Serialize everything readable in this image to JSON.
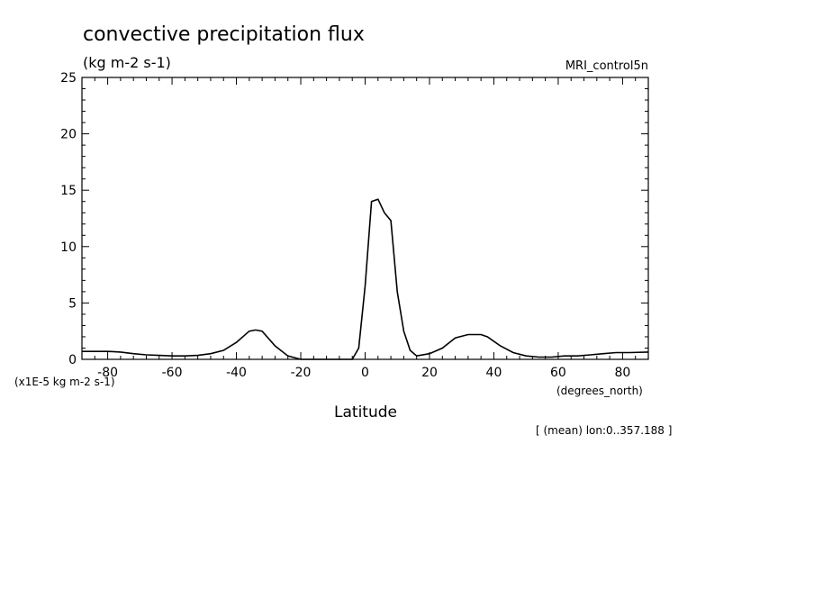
{
  "chart_data": {
    "type": "line",
    "title": "convective precipitation flux",
    "subtitle": "(kg m-2 s-1)",
    "model_label": "MRI_control5n",
    "xlabel": "Latitude",
    "xunits": "(degrees_north)",
    "yscale_label": "(x1E-5 kg m-2 s-1)",
    "footnote": "[ (mean) lon:0..357.188 ]",
    "xlim": [
      -88,
      88
    ],
    "ylim": [
      0,
      25
    ],
    "xticks": [
      -80,
      -60,
      -40,
      -20,
      0,
      20,
      40,
      60,
      80
    ],
    "xtick_labels": [
      "-80",
      "-60",
      "-40",
      "-20",
      "0",
      "20",
      "40",
      "60",
      "80"
    ],
    "yticks": [
      0,
      5,
      10,
      15,
      20,
      25
    ],
    "ytick_labels": [
      "0",
      "5",
      "10",
      "15",
      "20",
      "25"
    ],
    "grid": false,
    "series": [
      {
        "x": [
          -88,
          -84,
          -80,
          -76,
          -72,
          -68,
          -64,
          -60,
          -56,
          -52,
          -48,
          -44,
          -40,
          -36,
          -34,
          -32,
          -28,
          -24,
          -20,
          -16,
          -12,
          -8,
          -6,
          -4,
          -2,
          0,
          2,
          4,
          6,
          8,
          10,
          12,
          14,
          16,
          20,
          24,
          28,
          32,
          34,
          36,
          38,
          42,
          46,
          50,
          54,
          58,
          62,
          66,
          70,
          74,
          78,
          82,
          88
        ],
        "y": [
          0.7,
          0.7,
          0.7,
          0.65,
          0.5,
          0.4,
          0.35,
          0.3,
          0.3,
          0.35,
          0.5,
          0.8,
          1.5,
          2.5,
          2.6,
          2.5,
          1.2,
          0.3,
          0.0,
          0.0,
          0.0,
          0.0,
          0.0,
          0.0,
          1.0,
          6.5,
          14.0,
          14.2,
          13.0,
          12.3,
          6.0,
          2.5,
          0.8,
          0.3,
          0.5,
          1.0,
          1.9,
          2.2,
          2.2,
          2.2,
          2.0,
          1.2,
          0.6,
          0.3,
          0.2,
          0.2,
          0.3,
          0.3,
          0.4,
          0.5,
          0.6,
          0.6,
          0.65
        ]
      }
    ]
  }
}
